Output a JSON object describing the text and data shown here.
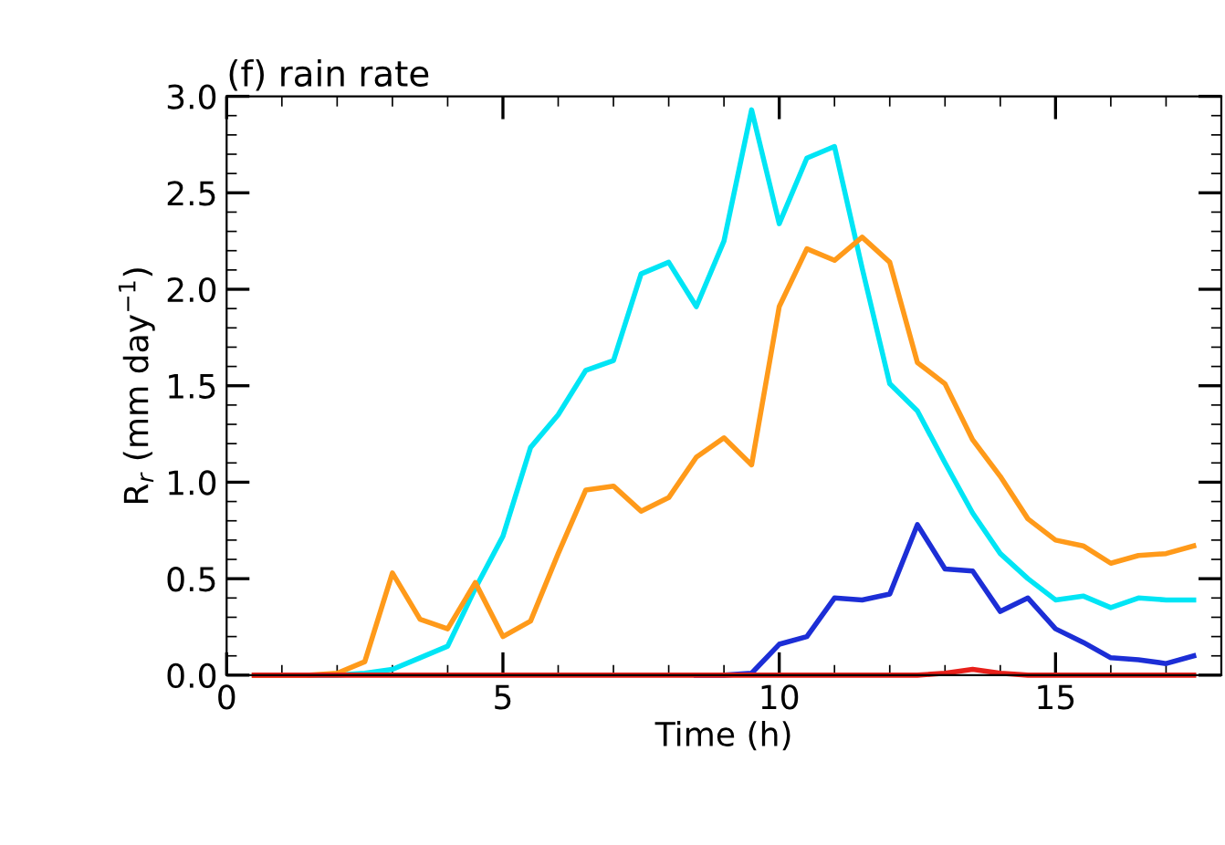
{
  "chart_data": {
    "type": "line",
    "title": "(f) rain rate",
    "xlabel": "Time (h)",
    "ylabel": "R$_{r}$ (mm day$^{−1}$)",
    "x": [
      0.5,
      1,
      1.5,
      2,
      2.5,
      3,
      3.5,
      4,
      4.5,
      5,
      5.5,
      6,
      6.5,
      7,
      7.5,
      8,
      8.5,
      9,
      9.5,
      10,
      10.5,
      11,
      11.5,
      12,
      12.5,
      13,
      13.5,
      14,
      14.5,
      15,
      15.5,
      16,
      16.5,
      17,
      17.5
    ],
    "series": [
      {
        "color": "#00e5f5",
        "values": [
          null,
          null,
          0,
          0,
          0.01,
          0.03,
          0.09,
          0.15,
          0.45,
          0.72,
          1.18,
          1.35,
          1.58,
          1.63,
          2.08,
          2.14,
          1.91,
          2.25,
          2.93,
          2.34,
          2.68,
          2.74,
          2.11,
          1.51,
          1.37,
          1.1,
          0.84,
          0.63,
          0.5,
          0.39,
          0.41,
          0.35,
          0.4,
          0.39,
          0.39
        ]
      },
      {
        "color": "#ff9a1a",
        "values": [
          0,
          0,
          0,
          0.01,
          0.07,
          0.53,
          0.29,
          0.24,
          0.48,
          0.2,
          0.28,
          0.63,
          0.96,
          0.98,
          0.85,
          0.92,
          1.13,
          1.23,
          1.09,
          1.91,
          2.21,
          2.15,
          2.27,
          2.14,
          1.62,
          1.51,
          1.22,
          1.03,
          0.81,
          0.7,
          0.67,
          0.58,
          0.62,
          0.63,
          0.67
        ]
      },
      {
        "color": "#1c2ed6",
        "values": [
          null,
          null,
          null,
          null,
          null,
          null,
          null,
          null,
          null,
          null,
          null,
          null,
          null,
          null,
          null,
          null,
          0,
          0,
          0.01,
          0.16,
          0.2,
          0.4,
          0.39,
          0.42,
          0.78,
          0.55,
          0.54,
          0.33,
          0.4,
          0.24,
          0.17,
          0.09,
          0.08,
          0.06,
          0.1
        ]
      },
      {
        "color": "#e8201a",
        "values": [
          0,
          0,
          0,
          0,
          0,
          0,
          0,
          0,
          0,
          0,
          0,
          0,
          0,
          0,
          0,
          0,
          0,
          0,
          0,
          0,
          0,
          0,
          0,
          0,
          0,
          0.01,
          0.03,
          0.01,
          0,
          0,
          0,
          0,
          0,
          0,
          0
        ]
      }
    ],
    "xlim": [
      0,
      18
    ],
    "ylim": [
      0,
      3.0
    ],
    "xticks": [
      0,
      5,
      10,
      15
    ],
    "yticks": [
      {
        "value": 0,
        "label": "0.0"
      },
      {
        "value": 0.5,
        "label": "0.5"
      },
      {
        "value": 1,
        "label": "1.0"
      },
      {
        "value": 1.5,
        "label": "1.5"
      },
      {
        "value": 2,
        "label": "2.0"
      },
      {
        "value": 2.5,
        "label": "2.5"
      },
      {
        "value": 3,
        "label": "3.0"
      }
    ],
    "grid": false,
    "marker": "none",
    "line_style": "solid"
  }
}
